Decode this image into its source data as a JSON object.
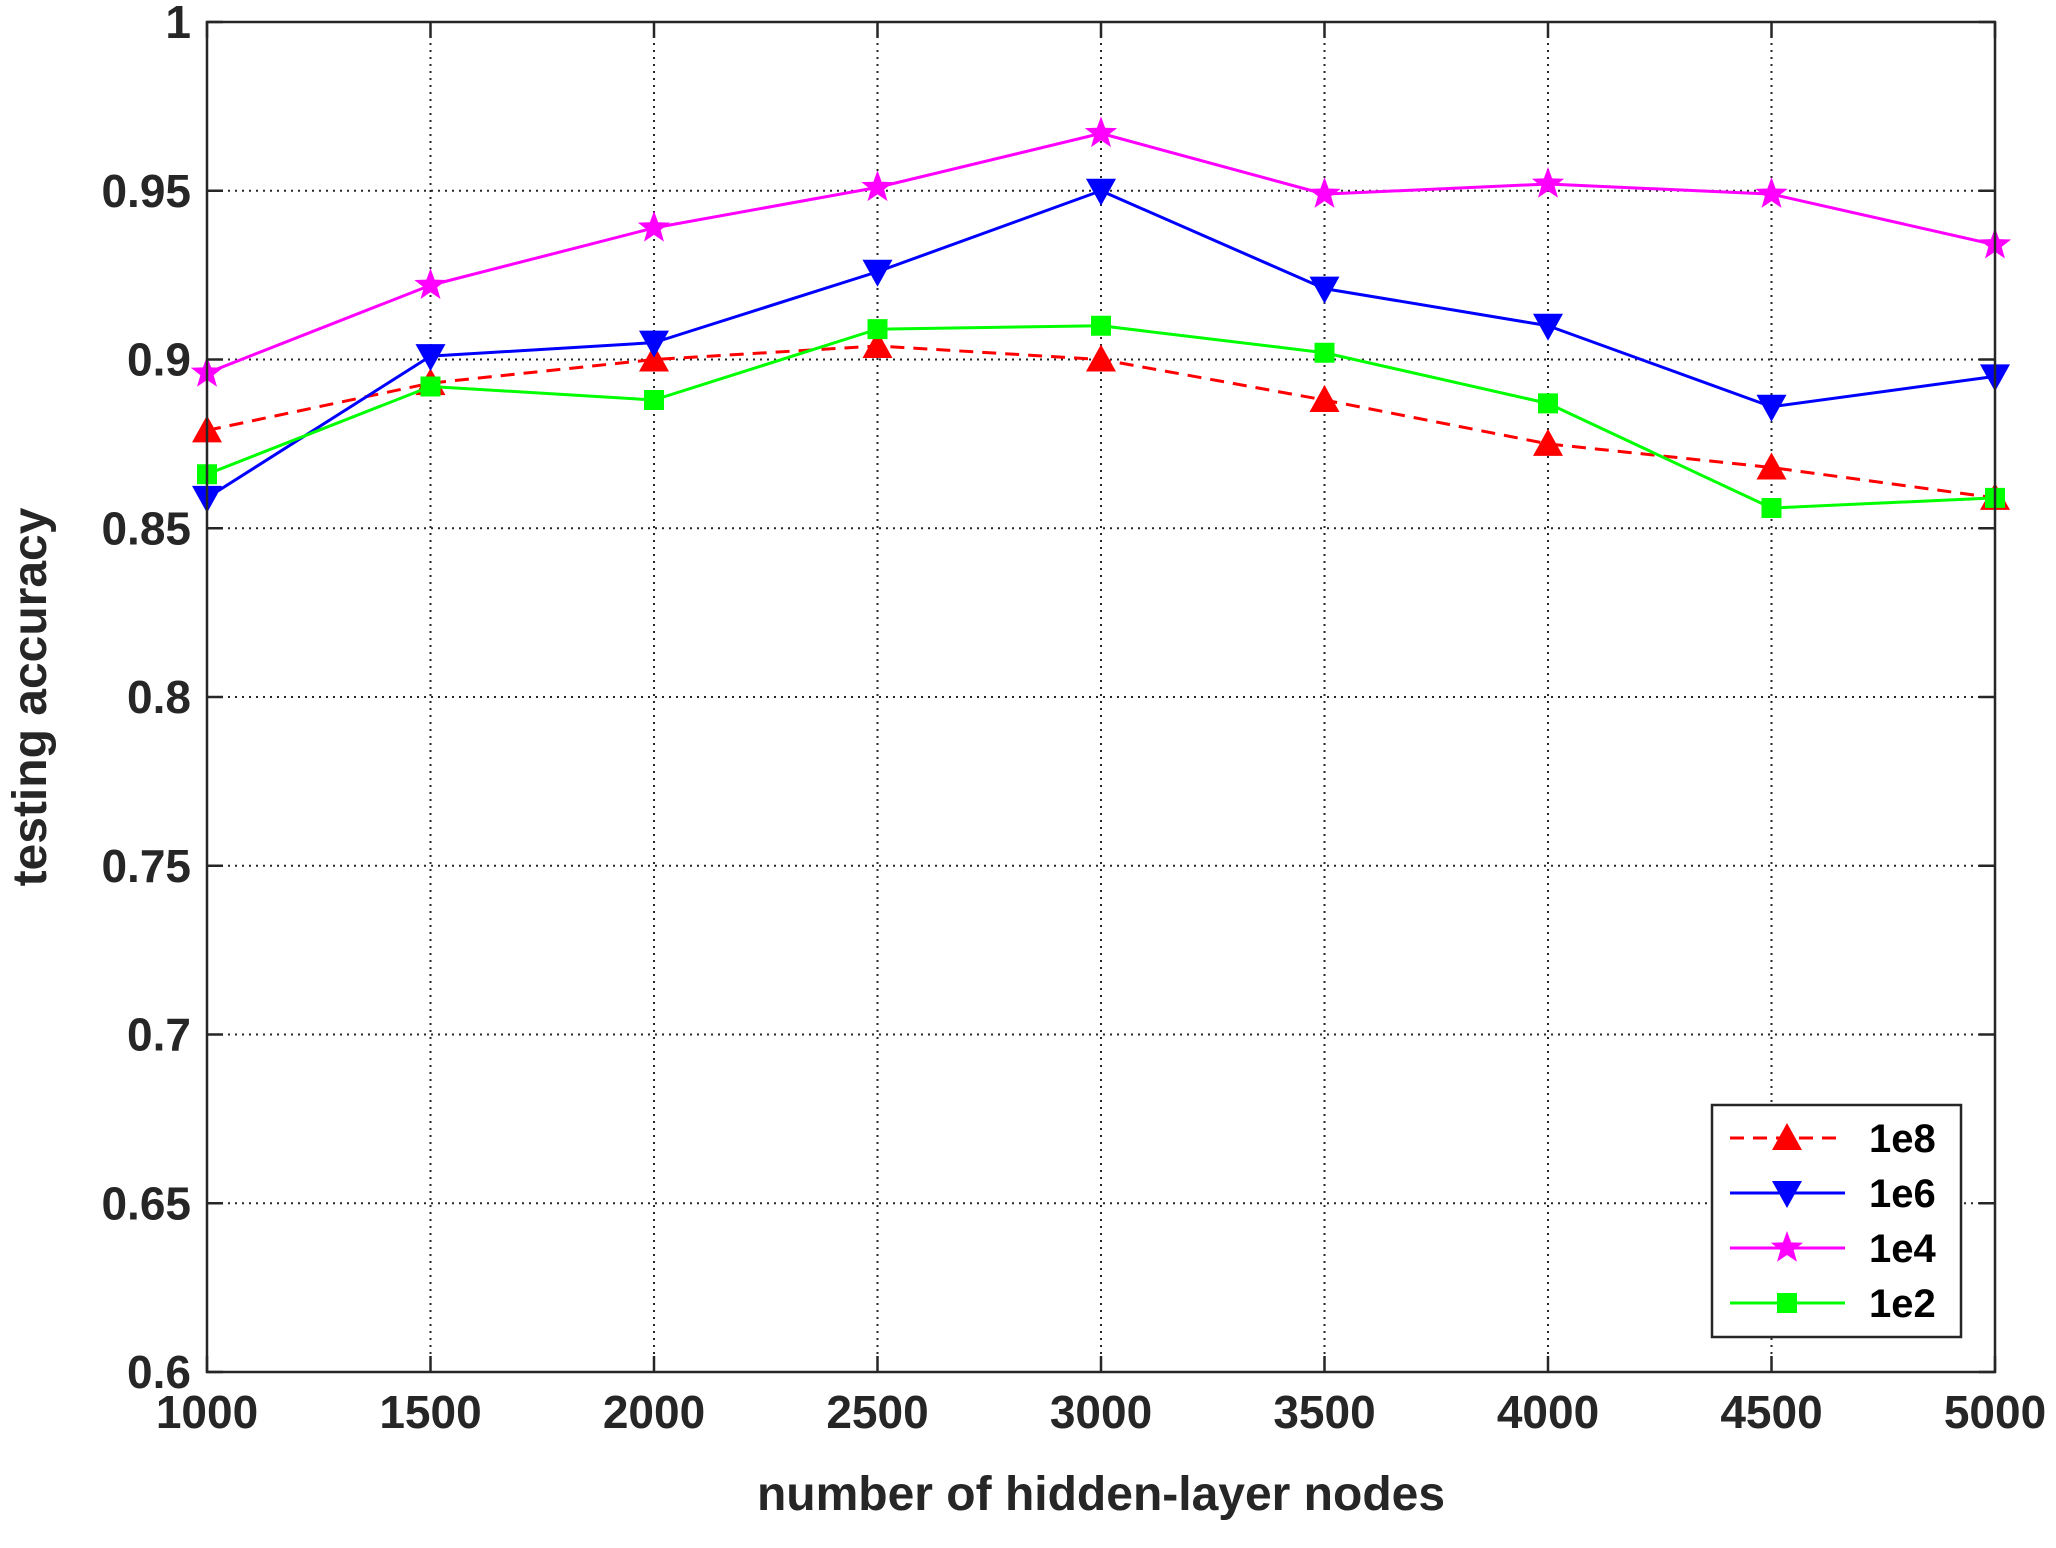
{
  "chart_data": {
    "type": "line",
    "title": "",
    "xlabel": "number of hidden-layer nodes",
    "ylabel": "testing accuracy",
    "x": [
      1000,
      1500,
      2000,
      2500,
      3000,
      3500,
      4000,
      4500,
      5000
    ],
    "xlim": [
      1000,
      5000
    ],
    "ylim": [
      0.6,
      1
    ],
    "xticks": [
      1000,
      1500,
      2000,
      2500,
      3000,
      3500,
      4000,
      4500,
      5000
    ],
    "xtick_labels": [
      "1000",
      "1500",
      "2000",
      "2500",
      "3000",
      "3500",
      "4000",
      "4500",
      "5000"
    ],
    "yticks": [
      0.6,
      0.65,
      0.7,
      0.75,
      0.8,
      0.85,
      0.9,
      0.95,
      1
    ],
    "ytick_labels": [
      "0.6",
      "0.65",
      "0.7",
      "0.75",
      "0.8",
      "0.85",
      "0.9",
      "0.95",
      "1"
    ],
    "grid": true,
    "grid_style": "dotted",
    "legend_position": "bottom-right",
    "series": [
      {
        "name": "1e8",
        "color": "#ff0000",
        "line_style": "dashed",
        "marker": "triangle-up",
        "values": [
          0.879,
          0.893,
          0.9,
          0.904,
          0.9,
          0.888,
          0.875,
          0.868,
          0.859
        ]
      },
      {
        "name": "1e6",
        "color": "#0000ff",
        "line_style": "solid",
        "marker": "triangle-down",
        "values": [
          0.859,
          0.901,
          0.905,
          0.926,
          0.95,
          0.921,
          0.91,
          0.886,
          0.895
        ]
      },
      {
        "name": "1e4",
        "color": "#ff00ff",
        "line_style": "solid",
        "marker": "star",
        "values": [
          0.896,
          0.922,
          0.939,
          0.951,
          0.967,
          0.949,
          0.952,
          0.949,
          0.934
        ]
      },
      {
        "name": "1e2",
        "color": "#00ff00",
        "line_style": "solid",
        "marker": "square",
        "values": [
          0.866,
          0.892,
          0.888,
          0.909,
          0.91,
          0.902,
          0.887,
          0.856,
          0.859
        ]
      }
    ]
  }
}
